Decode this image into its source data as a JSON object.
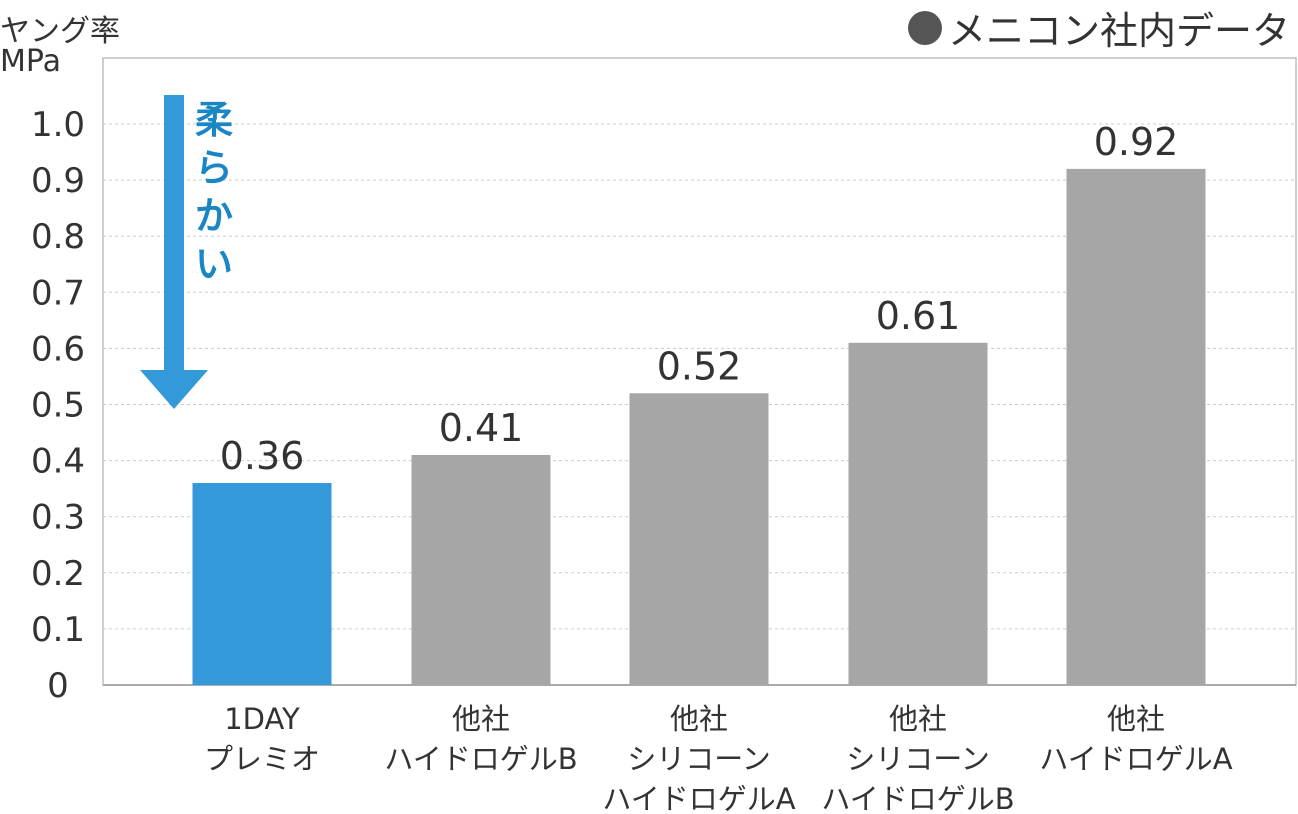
{
  "chart_data": {
    "type": "bar",
    "ylabel_lines": [
      "ヤング率",
      "MPa"
    ],
    "source_note": "メニコン社内データ",
    "annotation": "柔\nら\nか\nい",
    "categories": [
      "1DAY\nプレミオ",
      "他社\nハイドロゲルB",
      "他社\nシリコーン\nハイドロゲルA",
      "他社\nシリコーン\nハイドロゲルB",
      "他社\nハイドロゲルA"
    ],
    "values": [
      0.36,
      0.41,
      0.52,
      0.61,
      0.92
    ],
    "value_labels": [
      "0.36",
      "0.41",
      "0.52",
      "0.61",
      "0.92"
    ],
    "yticks": [
      "0",
      "0.1",
      "0.2",
      "0.3",
      "0.4",
      "0.5",
      "0.6",
      "0.7",
      "0.8",
      "0.9",
      "1.0"
    ],
    "ylim": [
      0,
      1.0
    ],
    "grid": true,
    "colors": {
      "highlight": "#3399d9",
      "bar": "#a6a6a6",
      "arrow": "#3399d9",
      "annotation": "#1a86c4",
      "grid": "#cccccc"
    },
    "highlight_index": 0
  }
}
